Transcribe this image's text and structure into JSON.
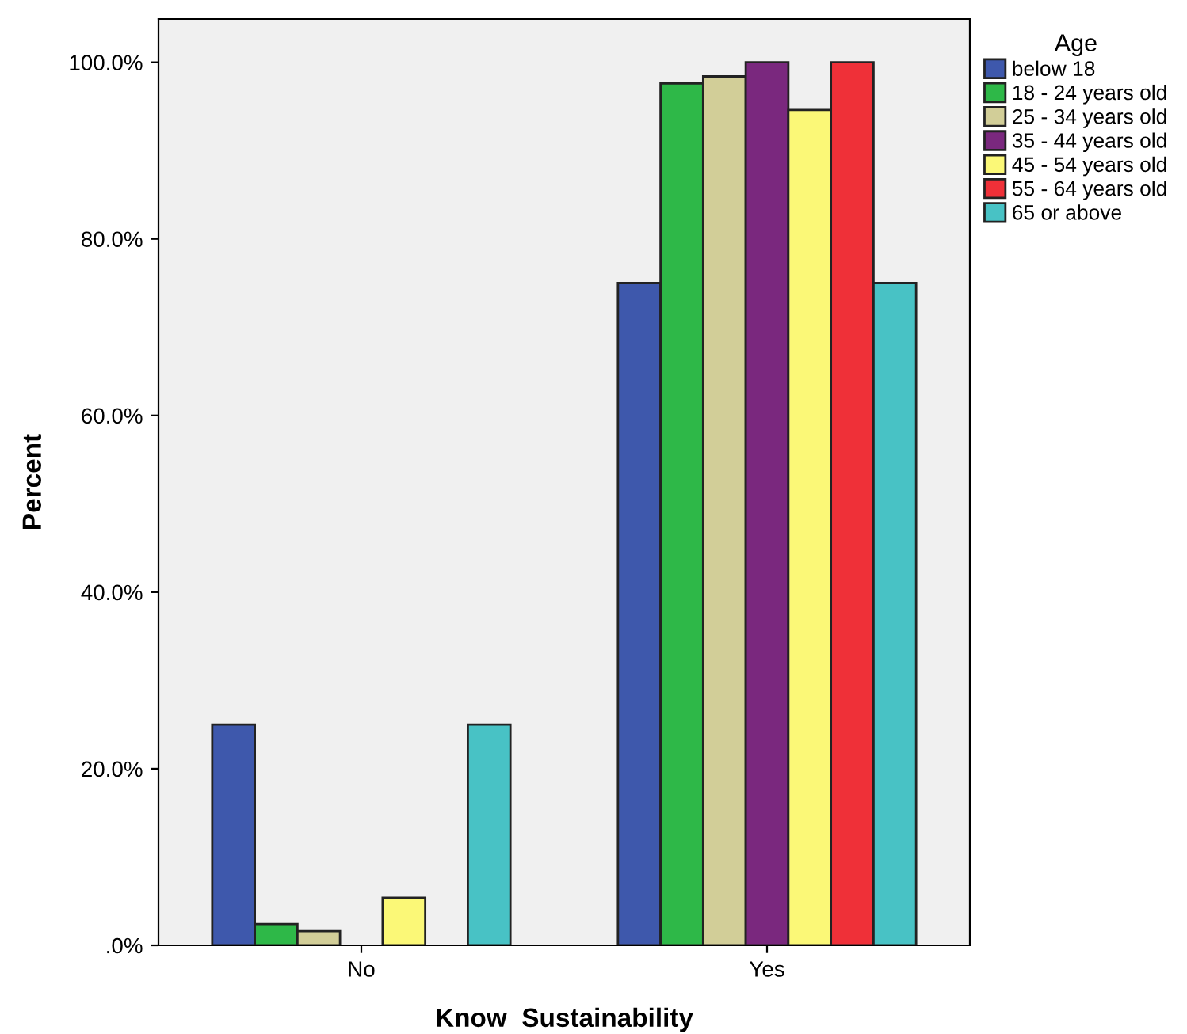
{
  "chart_data": {
    "type": "bar",
    "xlabel": "Know  Sustainability",
    "ylabel": "Percent",
    "legend_title": "Age",
    "legend": "right",
    "grid": false,
    "categories": [
      "No",
      "Yes"
    ],
    "series": [
      {
        "name": "below 18",
        "color": "#3e58ac",
        "values": [
          25,
          75
        ]
      },
      {
        "name": "18 - 24 years old",
        "color": "#2eb848",
        "values": [
          2.4,
          97.6
        ]
      },
      {
        "name": "25 - 34 years old",
        "color": "#d2ce98",
        "values": [
          1.6,
          98.4
        ]
      },
      {
        "name": "35 - 44 years old",
        "color": "#7a287e",
        "values": [
          0,
          100
        ]
      },
      {
        "name": "45 - 54 years old",
        "color": "#fbf877",
        "values": [
          5.4,
          94.6
        ]
      },
      {
        "name": "55 - 64 years old",
        "color": "#ef3038",
        "values": [
          0,
          100
        ]
      },
      {
        "name": "65 or above",
        "color": "#48c2c5",
        "values": [
          25,
          75
        ]
      }
    ],
    "ylim": [
      0,
      104.9
    ],
    "yticks": [
      {
        "value": 0,
        "label": ".0%"
      },
      {
        "value": 20,
        "label": "20.0%"
      },
      {
        "value": 40,
        "label": "40.0%"
      },
      {
        "value": 60,
        "label": "60.0%"
      },
      {
        "value": 80,
        "label": "80.0%"
      },
      {
        "value": 100,
        "label": "100.0%"
      }
    ]
  }
}
